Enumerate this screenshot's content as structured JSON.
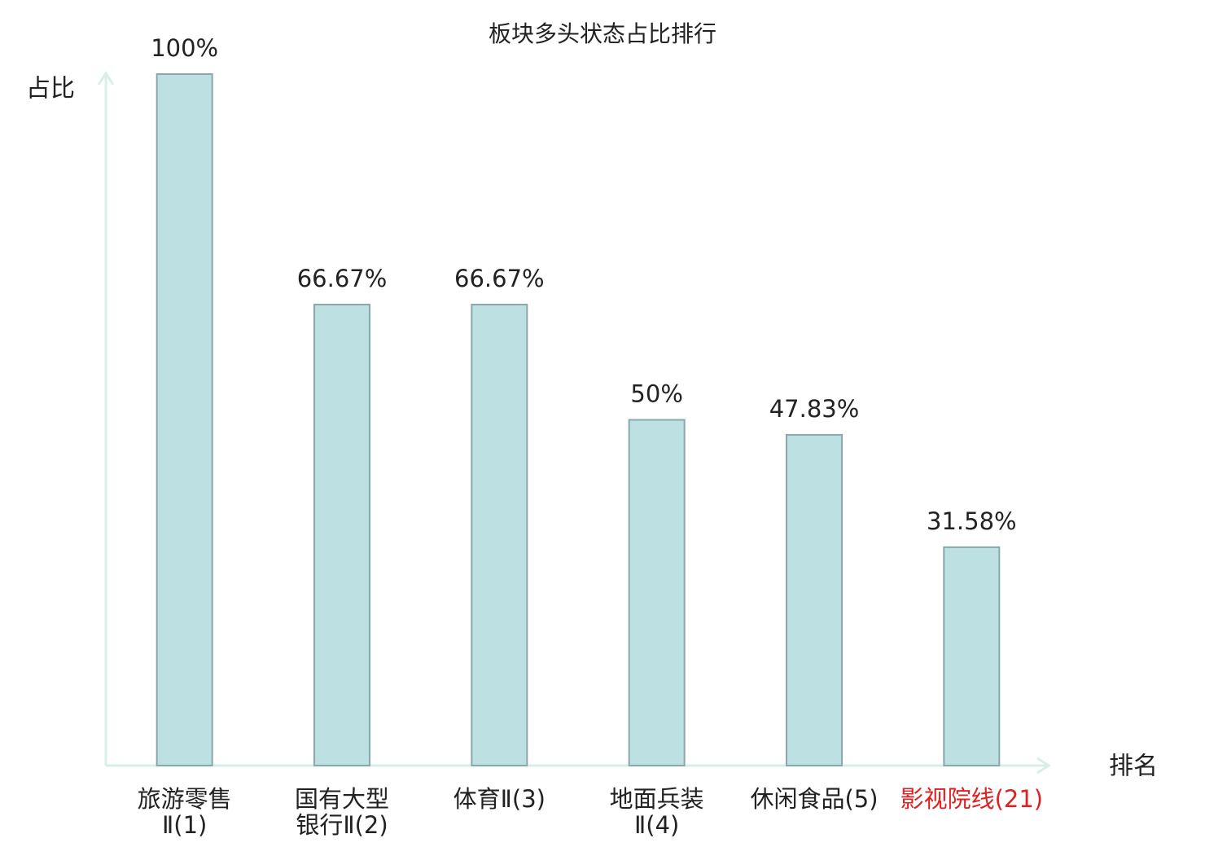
{
  "chart_data": {
    "type": "bar",
    "title": "板块多头状态占比排行",
    "y_label": "占比",
    "x_label": "排名",
    "categories": [
      [
        "旅游零售",
        "Ⅱ(1)"
      ],
      [
        "国有大型",
        "银行Ⅱ(2)"
      ],
      [
        "体育Ⅱ(3)"
      ],
      [
        "地面兵装",
        "Ⅱ(4)"
      ],
      [
        "休闲食品(5)"
      ],
      [
        "影视院线(21)"
      ]
    ],
    "values": [
      100,
      66.67,
      66.67,
      50,
      47.83,
      31.58
    ],
    "value_labels": [
      "100%",
      "66.67%",
      "66.67%",
      "50%",
      "47.83%",
      "31.58%"
    ],
    "color": "#bde0e3",
    "edge_color": "#8aa8ab",
    "axis_color": "#d8efe9",
    "highlight": {
      "index": 5,
      "color": "#e02020"
    },
    "ylim": [
      0,
      100
    ]
  }
}
